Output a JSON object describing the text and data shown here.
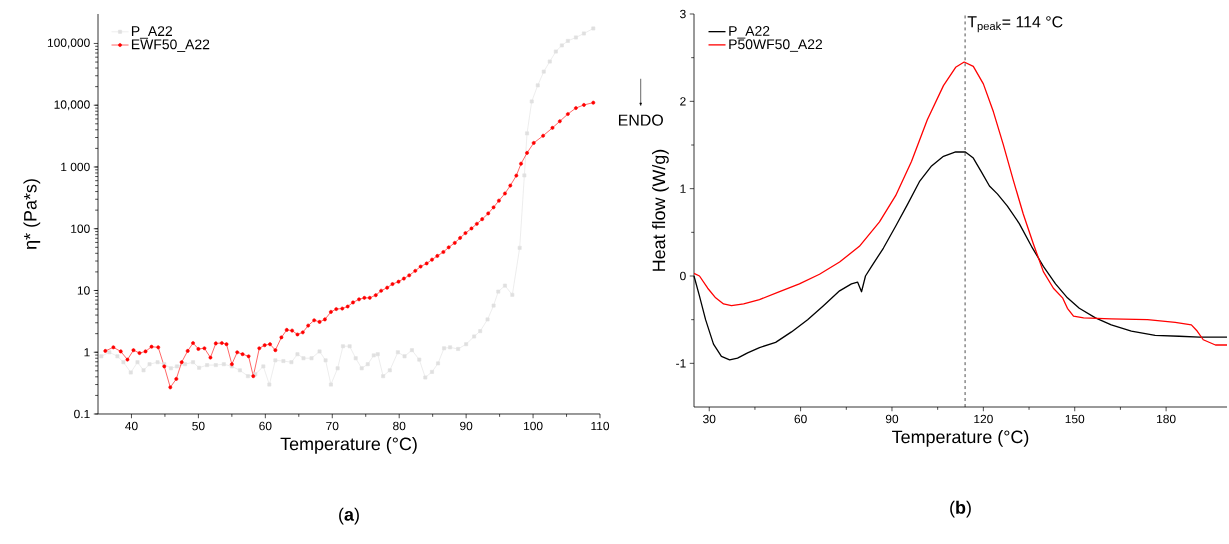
{
  "chart_data": [
    {
      "type": "line",
      "title": "(**a**)",
      "xlabel": "Temperature (°C)",
      "ylabel": "η* (Pa*s)",
      "log": "y",
      "legend": "top left",
      "xlim": [
        35,
        110
      ],
      "xticks": [
        40,
        50,
        60,
        70,
        80,
        90,
        100,
        110
      ],
      "ylim": [
        0.1,
        300000
      ],
      "yticks": [
        0.1,
        1,
        10,
        100,
        {
          "value": 1000,
          "label": "1 000"
        },
        {
          "value": 10000,
          "label": "10,000"
        },
        {
          "value": 100000,
          "label": "100,000"
        }
      ],
      "series": [
        {
          "name": "P_A22",
          "color": "#e0e0e0",
          "marker": "square",
          "x": [
            35.5,
            36.7,
            37.9,
            38.8,
            39.9,
            40.9,
            41.8,
            42.7,
            43.9,
            44.9,
            45.9,
            46.8,
            48,
            49.2,
            50.1,
            51.3,
            52.6,
            53.8,
            55,
            56.2,
            57.4,
            58.5,
            59.7,
            60.6,
            61.5,
            62.7,
            63.9,
            64.8,
            65.7,
            66.9,
            68.1,
            69,
            69.8,
            70.8,
            71.6,
            72.6,
            73.5,
            74.4,
            75.3,
            76.2,
            76.8,
            77.6,
            78.6,
            79.8,
            80.8,
            81.9,
            83,
            83.9,
            84.9,
            85.8,
            86.7,
            87.6,
            88.8,
            90,
            91.2,
            92.1,
            93.2,
            94.1,
            94.8,
            95.8,
            96.9,
            98,
            98.7,
            99.1,
            99.8,
            100.7,
            101.6,
            102.5,
            103.4,
            104.3,
            105.2,
            106.4,
            107.6,
            109
          ],
          "values": [
            0.86,
            1,
            0.86,
            0.69,
            0.47,
            0.69,
            0.51,
            0.64,
            0.69,
            0.64,
            0.55,
            0.59,
            0.64,
            0.69,
            0.56,
            0.62,
            0.62,
            0.64,
            0.59,
            0.51,
            0.41,
            0.44,
            0.59,
            0.3,
            0.74,
            0.72,
            0.69,
            0.93,
            0.8,
            0.8,
            1.03,
            0.74,
            0.3,
            0.55,
            1.25,
            1.25,
            0.8,
            0.55,
            0.64,
            0.89,
            0.93,
            0.41,
            0.51,
            1,
            0.86,
            1.08,
            0.76,
            0.39,
            0.48,
            0.66,
            1.16,
            1.2,
            1.13,
            1.35,
            1.8,
            2.2,
            3.4,
            5.7,
            9.6,
            12,
            8.5,
            49,
            730,
            3500,
            11500,
            21000,
            35000,
            51000,
            74000,
            93000,
            110000,
            125000,
            145000,
            175000
          ]
        },
        {
          "name": "EWF50_A22",
          "color": "#ff0000",
          "marker": "circle",
          "x": [
            36.1,
            37.3,
            38.4,
            39.4,
            40.3,
            41.2,
            42.1,
            43,
            44,
            44.9,
            45.8,
            46.7,
            47.5,
            48.4,
            49.2,
            50,
            50.9,
            51.8,
            52.6,
            53.5,
            54.2,
            55,
            55.8,
            56.6,
            57.5,
            58.2,
            59.1,
            59.9,
            60.7,
            61.5,
            62.4,
            63.2,
            64,
            64.8,
            65.6,
            66.4,
            67.3,
            68.1,
            68.9,
            69.8,
            70.6,
            71.5,
            72.3,
            73.1,
            74,
            74.8,
            75.6,
            76.5,
            77.3,
            78.2,
            79,
            79.9,
            80.7,
            81.5,
            82.4,
            83.2,
            84.1,
            84.9,
            85.7,
            86.6,
            87.4,
            88.3,
            89.1,
            89.9,
            90.8,
            91.6,
            92.4,
            93.3,
            94.1,
            94.9,
            95.8,
            96.6,
            97.5,
            98.2,
            99.1,
            100.1,
            101.5,
            102.9,
            104,
            105.2,
            106.4,
            107.6,
            109
          ],
          "values": [
            1.05,
            1.2,
            1.03,
            0.76,
            1.08,
            0.97,
            1.03,
            1.23,
            1.2,
            0.59,
            0.27,
            0.37,
            0.69,
            1.05,
            1.41,
            1.13,
            1.16,
            0.82,
            1.39,
            1.41,
            1.35,
            0.64,
            1,
            0.93,
            0.86,
            0.41,
            1.16,
            1.3,
            1.35,
            1.08,
            1.74,
            2.3,
            2.24,
            1.94,
            2.1,
            2.7,
            3.3,
            3.1,
            3.4,
            4.5,
            5,
            5.1,
            5.5,
            6.4,
            7.2,
            7.6,
            7.6,
            8.4,
            9.9,
            11.1,
            12.7,
            13.9,
            15.6,
            17.6,
            20.8,
            24.4,
            27.4,
            31.6,
            36.3,
            42,
            50,
            59,
            71,
            85,
            101,
            120,
            143,
            177,
            222,
            285,
            372,
            500,
            725,
            1130,
            1690,
            2450,
            3200,
            4300,
            5500,
            7200,
            9000,
            10100,
            11000
          ]
        }
      ]
    },
    {
      "type": "line",
      "title": "(**b**)",
      "xlabel": "Temperature (°C)",
      "ylabel": "Heat flow (W/g)",
      "legend": "top left",
      "xlim": [
        25,
        200
      ],
      "xticks": [
        30,
        60,
        90,
        120,
        150,
        180
      ],
      "ylim": [
        -1.5,
        3
      ],
      "yticks": [
        -1,
        0,
        1,
        2,
        3
      ],
      "annotations": [
        "ENDO"
      ],
      "ref_lines": [
        {
          "axis": "x",
          "value": 114,
          "label": "T$_{peak}$= 114 °C",
          "line_style": "dashed",
          "color": "#000000"
        }
      ],
      "series": [
        {
          "name": "P_A22",
          "color": "#000000",
          "x": [
            25,
            26.8,
            28.8,
            31.4,
            34,
            36.7,
            39.3,
            42.6,
            46.5,
            51.8,
            57,
            62.3,
            67.5,
            72.8,
            76.7,
            78.7,
            80,
            81.3,
            83.3,
            87.2,
            91.2,
            95.1,
            99,
            103,
            106.9,
            110.9,
            114.1,
            116.7,
            119.4,
            122,
            124.6,
            127.9,
            131.8,
            135.8,
            139.7,
            143.7,
            147.6,
            151.5,
            156.8,
            162,
            168.6,
            176.4,
            184.3,
            190.9,
            200
          ],
          "values": [
            0,
            -0.23,
            -0.5,
            -0.78,
            -0.92,
            -0.96,
            -0.94,
            -0.88,
            -0.82,
            -0.76,
            -0.64,
            -0.5,
            -0.34,
            -0.17,
            -0.09,
            -0.07,
            -0.18,
            0,
            0.11,
            0.32,
            0.57,
            0.82,
            1.08,
            1.26,
            1.37,
            1.42,
            1.42,
            1.35,
            1.19,
            1.03,
            0.94,
            0.8,
            0.6,
            0.34,
            0.11,
            -0.09,
            -0.25,
            -0.37,
            -0.48,
            -0.56,
            -0.63,
            -0.68,
            -0.69,
            -0.7,
            -0.7
          ]
        },
        {
          "name": "P50WF50_A22",
          "color": "#ff0000",
          "x": [
            25,
            26.8,
            29.5,
            32.1,
            34.7,
            37.3,
            41.3,
            46.5,
            53.1,
            59.6,
            66.2,
            72.8,
            79.3,
            85.9,
            91.2,
            96.4,
            101.6,
            106.9,
            110.9,
            113.7,
            116.7,
            120,
            123.3,
            126.5,
            129.8,
            133.1,
            136.4,
            139.7,
            143,
            146,
            147.6,
            149.6,
            152.9,
            162,
            173.9,
            183,
            188.3,
            190.2,
            192.2,
            196.2,
            200
          ],
          "values": [
            0.03,
            0,
            -0.14,
            -0.25,
            -0.32,
            -0.34,
            -0.32,
            -0.27,
            -0.18,
            -0.09,
            0.02,
            0.16,
            0.34,
            0.62,
            0.92,
            1.31,
            1.79,
            2.18,
            2.39,
            2.45,
            2.4,
            2.2,
            1.88,
            1.51,
            1.1,
            0.71,
            0.37,
            0.05,
            -0.14,
            -0.25,
            -0.37,
            -0.46,
            -0.48,
            -0.49,
            -0.5,
            -0.53,
            -0.56,
            -0.63,
            -0.73,
            -0.79,
            -0.79
          ]
        }
      ]
    }
  ]
}
